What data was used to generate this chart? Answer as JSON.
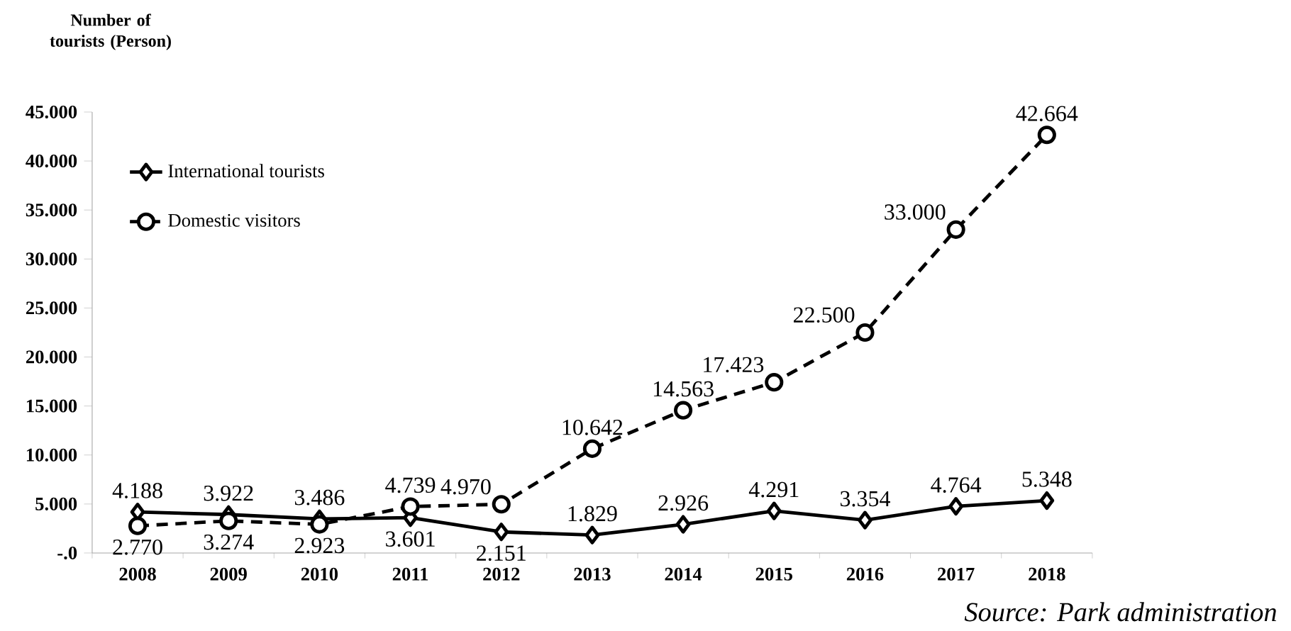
{
  "chart_data": {
    "type": "line",
    "ylabel": "Number of tourists (Person)",
    "annotations": [
      "Source: Park administration"
    ],
    "categories": [
      "2008",
      "2009",
      "2010",
      "2011",
      "2012",
      "2013",
      "2014",
      "2015",
      "2016",
      "2017",
      "2018"
    ],
    "series": [
      {
        "name": "International tourists",
        "color": "#000000",
        "marker": "diamond",
        "line_style": "solid",
        "values": [
          4188,
          3922,
          3486,
          3601,
          2151,
          1829,
          2926,
          4291,
          3354,
          4764,
          5348
        ],
        "value_labels": [
          "4.188",
          "3.922",
          "3.486",
          "3.601",
          "2.151",
          "1.829",
          "2.926",
          "4.291",
          "3.354",
          "4.764",
          "5.348"
        ]
      },
      {
        "name": "Domestic visitors",
        "color": "#000000",
        "marker": "circle",
        "line_style": "dashed",
        "values": [
          2770,
          3274,
          2923,
          4739,
          4970,
          10642,
          14563,
          17423,
          22500,
          33000,
          42664
        ],
        "value_labels": [
          "2.770",
          "3.274",
          "2.923",
          "4.739",
          "4.970",
          "10.642",
          "14.563",
          "17.423",
          "22.500",
          "33.000",
          "42.664"
        ]
      }
    ],
    "ylim": [
      0,
      45000
    ],
    "yticks": [
      {
        "value": 0,
        "label": "-.0"
      },
      {
        "value": 5000,
        "label": "5.000"
      },
      {
        "value": 10000,
        "label": "10.000"
      },
      {
        "value": 15000,
        "label": "15.000"
      },
      {
        "value": 20000,
        "label": "20.000"
      },
      {
        "value": 25000,
        "label": "25.000"
      },
      {
        "value": 30000,
        "label": "30.000"
      },
      {
        "value": 35000,
        "label": "35.000"
      },
      {
        "value": 40000,
        "label": "40.000"
      },
      {
        "value": 45000,
        "label": "45.000"
      }
    ],
    "grid": false,
    "legend": "top left"
  }
}
